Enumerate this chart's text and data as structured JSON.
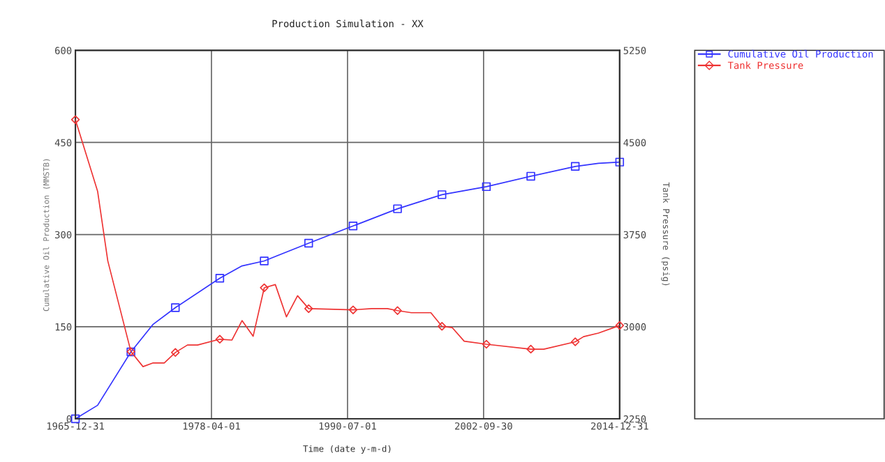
{
  "chart_data": {
    "type": "line",
    "title": "Production Simulation - XX",
    "xlabel": "Time (date y-m-d)",
    "ylabel": "Cumulative Oil Production (MMSTB)",
    "y2label": "Tank Pressure (psig)",
    "xlim": [
      "1965-12-31",
      "2014-12-31"
    ],
    "xticks": [
      "1965-12-31",
      "1978-04-01",
      "1990-07-01",
      "2002-09-30",
      "2014-12-31"
    ],
    "ylim": [
      0,
      600
    ],
    "yticks": [
      0,
      150,
      300,
      450,
      600
    ],
    "y2lim": [
      2250,
      5250
    ],
    "y2ticks": [
      2250,
      3000,
      3750,
      4500,
      5250
    ],
    "grid": true,
    "legend": "right",
    "line_style": "solid",
    "series": [
      {
        "name": "Cumulative Oil Production",
        "color": "#3333ff",
        "marker": "none",
        "x": [
          "1965-12-31",
          "1967-12-31",
          "1970-12-31",
          "1972-12-31",
          "1974-12-31",
          "1978-12-31",
          "1980-12-31",
          "1982-12-31",
          "1984-02-01",
          "1986-12-31",
          "1990-12-31",
          "1994-12-31",
          "1998-12-31",
          "2002-12-31",
          "2006-12-31",
          "2010-12-31",
          "2013-02-01",
          "2014-12-31"
        ],
        "values": [
          0,
          22,
          109,
          154,
          181,
          229,
          249,
          257,
          265,
          286,
          314,
          342,
          365,
          378,
          395,
          411,
          416,
          418
        ]
      },
      {
        "type": "scatter",
        "color": "#3333ff",
        "marker": "square",
        "x": [
          "1965-12-31",
          "1970-12-31",
          "1974-12-31",
          "1978-12-31",
          "1982-12-31",
          "1986-12-31",
          "1990-12-31",
          "1994-12-31",
          "1998-12-31",
          "2002-12-31",
          "2006-12-31",
          "2010-12-31",
          "2014-12-31"
        ],
        "values": [
          0,
          109,
          181,
          229,
          257,
          286,
          314,
          342,
          365,
          378,
          395,
          411,
          418
        ]
      },
      {
        "name": "Tank Pressure",
        "axis": "y2",
        "color": "#ee3333",
        "marker": "none",
        "x": [
          "1965-12-31",
          "1967-12-31",
          "1968-11-30",
          "1970-12-31",
          "1972-02-01",
          "1972-12-31",
          "1973-12-31",
          "1974-12-31",
          "1976-02-01",
          "1976-12-31",
          "1978-12-31",
          "1980-02-01",
          "1980-12-31",
          "1981-12-31",
          "1982-12-31",
          "1983-12-31",
          "1984-12-31",
          "1985-12-31",
          "1986-12-31",
          "1990-12-31",
          "1992-09-01",
          "1994-02-01",
          "1994-12-31",
          "1996-04-01",
          "1997-12-31",
          "1998-12-31",
          "1999-12-01",
          "2000-12-31",
          "2002-12-31",
          "2006-12-31",
          "2008-03-01",
          "2010-12-31",
          "2011-10-01",
          "2013-02-01",
          "2014-12-31"
        ],
        "values": [
          4686,
          4103,
          3536,
          2797,
          2675,
          2705,
          2705,
          2790,
          2851,
          2851,
          2898,
          2891,
          3050,
          2922,
          3317,
          3343,
          3080,
          3252,
          3147,
          3137,
          3147,
          3147,
          3131,
          3114,
          3114,
          3003,
          2993,
          2882,
          2857,
          2817,
          2817,
          2877,
          2919,
          2948,
          3010
        ]
      },
      {
        "type": "scatter",
        "axis": "y2",
        "color": "#ee3333",
        "marker": "diamond",
        "x": [
          "1965-12-31",
          "1970-12-31",
          "1974-12-31",
          "1978-12-31",
          "1982-12-31",
          "1986-12-31",
          "1990-12-31",
          "1994-12-31",
          "1998-12-31",
          "2002-12-31",
          "2006-12-31",
          "2010-12-31",
          "2014-12-31"
        ],
        "values": [
          4686,
          2797,
          2790,
          2898,
          3317,
          3147,
          3137,
          3131,
          3003,
          2857,
          2817,
          2877,
          3010
        ]
      }
    ]
  }
}
